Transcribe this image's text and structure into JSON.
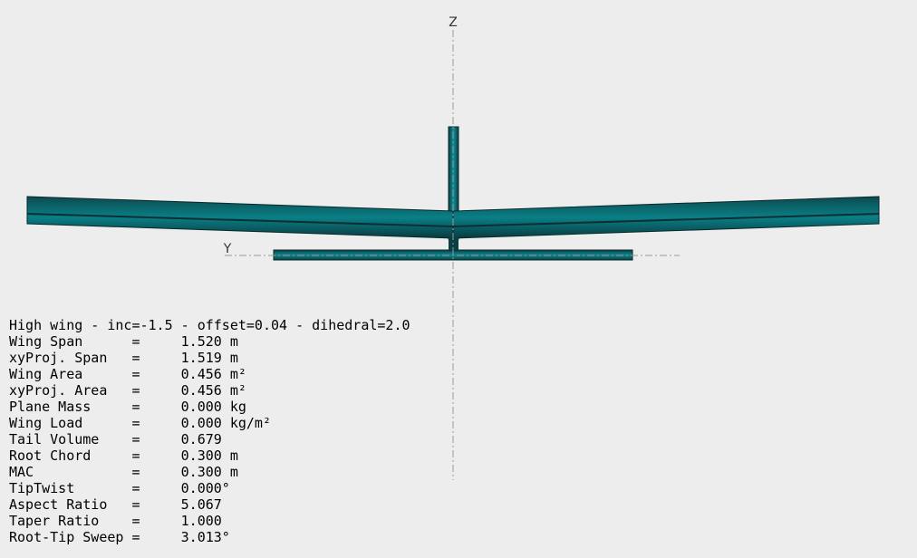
{
  "view": {
    "axis_labels": {
      "z": "Z",
      "y": "Y"
    }
  },
  "info": {
    "title": "High wing - inc=-1.5 - offset=0.04 - dihedral=2.0",
    "lines": [
      "Wing Span      =     1.520 m",
      "xyProj. Span   =     1.519 m",
      "Wing Area      =     0.456 m²",
      "xyProj. Area   =     0.456 m²",
      "Plane Mass     =     0.000 kg",
      "Wing Load      =     0.000 kg/m²",
      "Tail Volume    =     0.679",
      "Root Chord     =     0.300 m",
      "MAC            =     0.300 m",
      "TipTwist       =     0.000°",
      "Aspect Ratio   =     5.067",
      "Taper Ratio    =     1.000",
      "Root-Tip Sweep =     3.013°"
    ]
  }
}
